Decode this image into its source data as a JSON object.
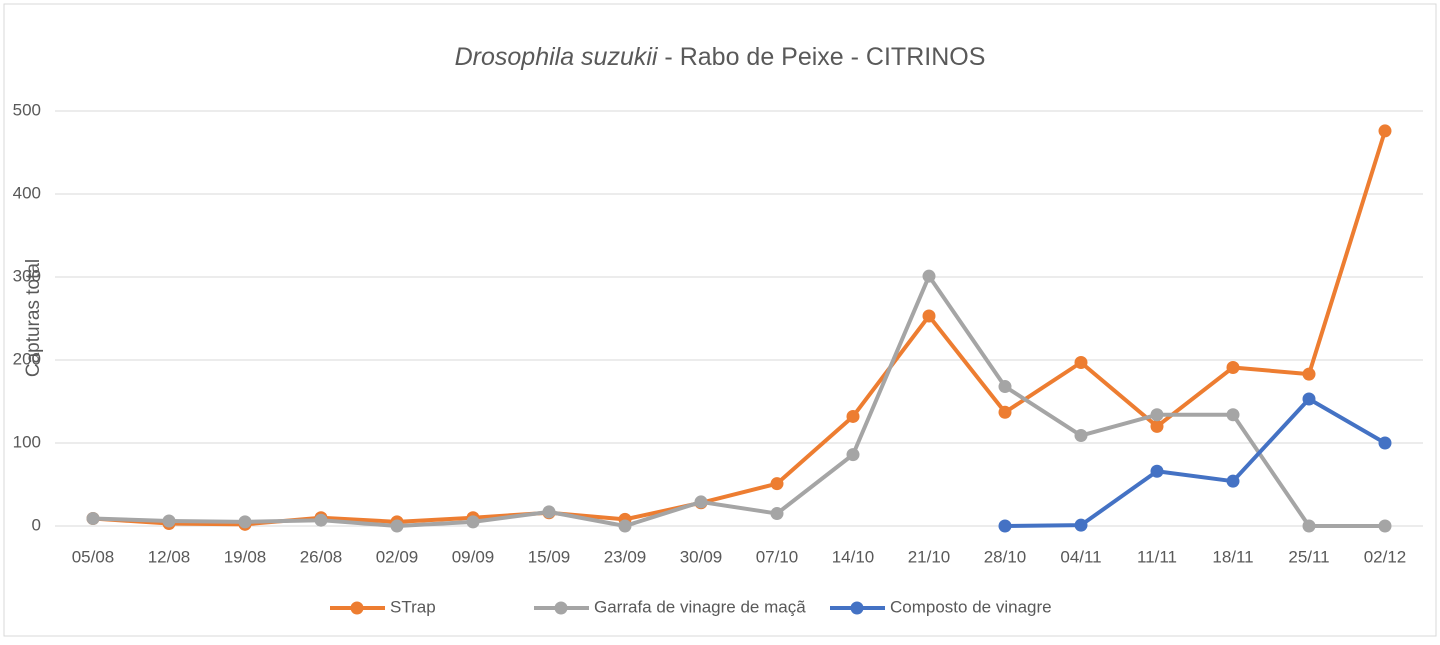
{
  "chart_data": {
    "type": "line",
    "title": [
      "Drosophila suzukii",
      " - Rabo de Peixe - CITRINOS"
    ],
    "y_label": "Capturas total",
    "categories": [
      "05/08",
      "12/08",
      "19/08",
      "26/08",
      "02/09",
      "09/09",
      "15/09",
      "23/09",
      "30/09",
      "07/10",
      "14/10",
      "21/10",
      "28/10",
      "04/11",
      "11/11",
      "18/11",
      "25/11",
      "02/12"
    ],
    "series": [
      {
        "name": "STrap",
        "color": "#ed7d31",
        "values": [
          9,
          3,
          2,
          10,
          5,
          10,
          16,
          8,
          28,
          51,
          132,
          253,
          137,
          197,
          120,
          191,
          183,
          476
        ]
      },
      {
        "name": "Garrafa de vinagre de maçã",
        "color": "#a5a5a5",
        "values": [
          9,
          6,
          5,
          7,
          0,
          5,
          17,
          0,
          29,
          15,
          86,
          301,
          168,
          109,
          134,
          134,
          0,
          0
        ]
      },
      {
        "name": "Composto de vinagre",
        "color": "#4472c4",
        "values": [
          null,
          null,
          null,
          null,
          null,
          null,
          null,
          null,
          null,
          null,
          null,
          null,
          0,
          1,
          66,
          54,
          153,
          100
        ]
      }
    ],
    "ylim": [
      0,
      500
    ],
    "yticks": [
      0,
      100,
      200,
      300,
      400,
      500
    ],
    "grid": true,
    "legend": "bottom"
  }
}
